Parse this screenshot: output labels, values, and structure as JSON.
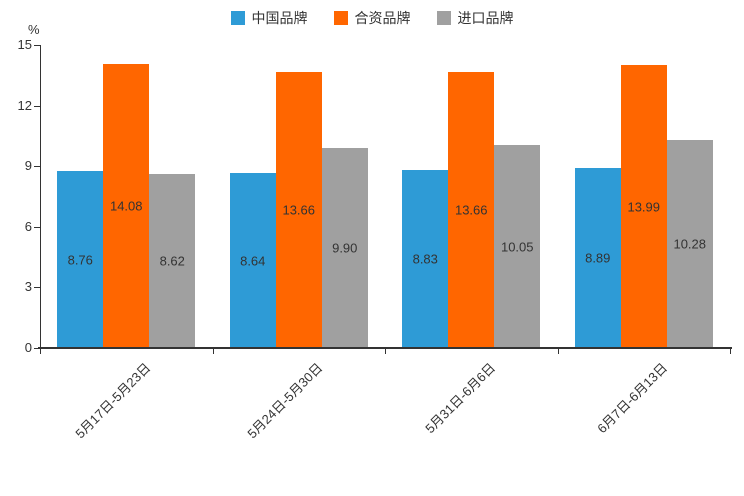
{
  "chart_data": {
    "type": "bar",
    "title": "",
    "unit_label": "%",
    "categories": [
      "5月17日-5月23日",
      "5月24日-5月30日",
      "5月31日-6月6日",
      "6月7日-6月13日"
    ],
    "series": [
      {
        "name": "中国品牌",
        "color": "#2E9BD6",
        "values": [
          8.76,
          8.64,
          8.83,
          8.89
        ]
      },
      {
        "name": "合资品牌",
        "color": "#FF6600",
        "values": [
          14.08,
          13.66,
          13.66,
          13.99
        ]
      },
      {
        "name": "进口品牌",
        "color": "#A0A0A0",
        "values": [
          8.62,
          9.9,
          10.05,
          10.28
        ]
      }
    ],
    "ylim": [
      0,
      15
    ],
    "yticks": [
      0,
      3,
      6,
      9,
      12,
      15
    ],
    "legend_position": "top",
    "grid": false,
    "value_labels": "inside-middle",
    "value_label_decimals": 2
  }
}
